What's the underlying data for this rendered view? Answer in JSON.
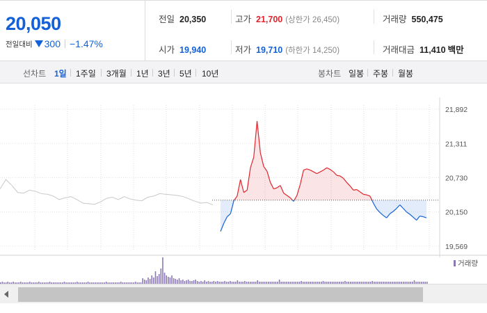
{
  "summary": {
    "current_price": "20,050",
    "change_label": "전일대비",
    "change_amount": "300",
    "change_rate": "−1.47%",
    "prev_close_label": "전일",
    "prev_close": "20,350",
    "high_label": "고가",
    "high": "21,700",
    "upper_limit": "(상한가 26,450)",
    "volume_label": "거래량",
    "volume": "550,475",
    "open_label": "시가",
    "open": "19,940",
    "low_label": "저가",
    "low": "19,710",
    "lower_limit": "(하한가 14,250)",
    "value_label": "거래대금",
    "value": "11,410",
    "value_unit": "백만"
  },
  "line_tabs": {
    "label": "선차트",
    "items": [
      "1일",
      "1주일",
      "3개월",
      "1년",
      "3년",
      "5년",
      "10년"
    ],
    "active": "1일"
  },
  "candle_tabs": {
    "label": "봉차트",
    "items": [
      "일봉",
      "주봉",
      "월봉"
    ]
  },
  "colors": {
    "up": "#e0242c",
    "down": "#1460d8",
    "previous_day_line": "#c8c8c8",
    "volume": "#8b78b8"
  },
  "chart_data": {
    "type": "line",
    "y_ticks": [
      "21,892",
      "21,311",
      "20,730",
      "20,150",
      "19,569"
    ],
    "ylim": [
      19569,
      21892
    ],
    "reference_price": 20350,
    "legend": "거래량",
    "previous_day_series": [
      20540,
      20700,
      20600,
      20480,
      20470,
      20520,
      20500,
      20460,
      20450,
      20420,
      20360,
      20390,
      20410,
      20360,
      20300,
      20290,
      20280,
      20320,
      20380,
      20400,
      20360,
      20410,
      20370,
      20350,
      20340,
      20400,
      20420,
      20460,
      20450,
      20440,
      20430,
      20410,
      20370,
      20330,
      20300,
      20310,
      20270
    ],
    "today_series": [
      19820,
      19960,
      20070,
      20120,
      20340,
      20420,
      20700,
      20480,
      20520,
      20900,
      21080,
      21690,
      21150,
      20920,
      20840,
      20650,
      20540,
      20560,
      20600,
      20470,
      20430,
      20390,
      20330,
      20430,
      20620,
      20860,
      20880,
      20860,
      20830,
      20800,
      20830,
      20860,
      20900,
      20870,
      20830,
      20770,
      20760,
      20720,
      20650,
      20590,
      20520,
      20530,
      20490,
      20450,
      20440,
      20420,
      20300,
      20200,
      20140,
      20090,
      20050,
      20120,
      20160,
      20210,
      20270,
      20210,
      20150,
      20110,
      20060,
      20010,
      20080,
      20070,
      20050
    ],
    "volume_series": [
      2,
      3,
      2,
      2,
      3,
      2,
      2,
      3,
      2,
      2,
      2,
      3,
      2,
      2,
      2,
      2,
      3,
      2,
      2,
      2,
      2,
      3,
      2,
      2,
      2,
      2,
      2,
      3,
      2,
      2,
      2,
      2,
      2,
      2,
      2,
      3,
      2,
      2,
      2,
      2,
      2,
      2,
      3,
      2,
      2,
      2,
      2,
      2,
      3,
      2,
      2,
      2,
      2,
      2,
      2,
      2,
      2,
      2,
      3,
      2,
      2,
      2,
      2,
      2,
      2,
      2,
      3,
      2,
      2,
      2,
      2,
      2,
      2,
      2,
      3,
      2,
      2,
      2,
      8,
      6,
      5,
      9,
      7,
      12,
      9,
      18,
      11,
      14,
      22,
      38,
      16,
      12,
      10,
      9,
      12,
      8,
      7,
      6,
      8,
      5,
      6,
      4,
      5,
      6,
      4,
      4,
      5,
      6,
      4,
      3,
      4,
      3,
      5,
      3,
      4,
      3,
      3,
      4,
      3,
      4,
      3,
      3,
      3,
      4,
      3,
      3,
      4,
      3,
      3,
      3,
      5,
      3,
      3,
      3,
      4,
      3,
      3,
      3,
      3,
      3,
      3,
      5,
      3,
      3,
      3,
      3,
      3,
      3,
      3,
      3,
      3,
      3,
      3,
      6,
      3,
      3,
      3,
      3,
      3,
      3,
      3,
      3,
      3,
      3,
      3,
      4,
      3,
      3,
      3,
      3,
      3,
      3,
      3,
      3,
      3,
      3,
      3,
      4,
      3,
      3,
      3,
      3,
      3,
      3,
      3,
      3,
      3,
      3,
      3,
      4,
      3,
      3,
      3,
      3,
      3,
      3,
      3,
      3,
      3,
      3,
      3,
      3,
      3,
      3,
      4,
      3,
      3,
      3,
      3,
      3,
      3,
      3,
      3,
      3,
      3,
      3,
      3,
      3,
      3,
      3,
      3,
      3,
      3,
      3,
      3,
      3,
      3,
      5,
      3,
      3,
      3,
      3,
      3,
      3,
      3
    ]
  }
}
